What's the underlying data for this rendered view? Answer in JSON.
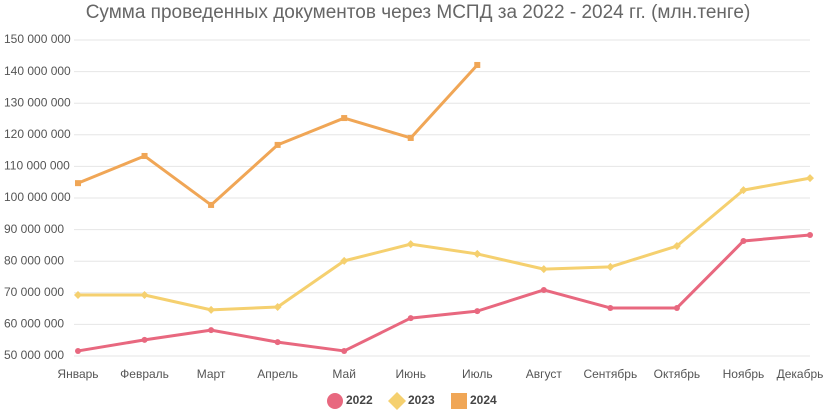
{
  "chart_data": {
    "type": "line",
    "title": "Сумма проведенных документов через МСПД за 2022 - 2024 гг. (млн.тенге)",
    "categories": [
      "Январь",
      "Февраль",
      "Март",
      "Апрель",
      "Май",
      "Июнь",
      "Июль",
      "Август",
      "Сентябрь",
      "Октябрь",
      "Ноябрь",
      "Декабрь"
    ],
    "series": [
      {
        "name": "2022",
        "color": "#e8687f",
        "marker": "circle",
        "values": [
          51600000,
          55100000,
          58200000,
          54400000,
          51600000,
          62000000,
          64200000,
          70900000,
          65200000,
          65200000,
          86400000,
          88300000
        ]
      },
      {
        "name": "2023",
        "color": "#f5d06f",
        "marker": "diamond",
        "values": [
          69300000,
          69300000,
          64600000,
          65500000,
          80100000,
          85400000,
          82300000,
          77500000,
          78200000,
          84800000,
          102500000,
          106300000
        ]
      },
      {
        "name": "2024",
        "color": "#f0a656",
        "marker": "square",
        "values": [
          104700000,
          113300000,
          97800000,
          116800000,
          125300000,
          119000000,
          142100000,
          null,
          null,
          null,
          null,
          null
        ]
      }
    ],
    "ylim": [
      50000000,
      150000000
    ],
    "yticks": [
      {
        "value": 50000000,
        "label": "50 000 000"
      },
      {
        "value": 60000000,
        "label": "60 000 000"
      },
      {
        "value": 70000000,
        "label": "70 000 000"
      },
      {
        "value": 80000000,
        "label": "80 000 000"
      },
      {
        "value": 90000000,
        "label": "90 000 000"
      },
      {
        "value": 100000000,
        "label": "100 000 000"
      },
      {
        "value": 110000000,
        "label": "110 000 000"
      },
      {
        "value": 120000000,
        "label": "120 000 000"
      },
      {
        "value": 130000000,
        "label": "130 000 000"
      },
      {
        "value": 140000000,
        "label": "140 000 000"
      },
      {
        "value": 150000000,
        "label": "150 000 000"
      }
    ],
    "grid": true,
    "legend": "bottom"
  }
}
